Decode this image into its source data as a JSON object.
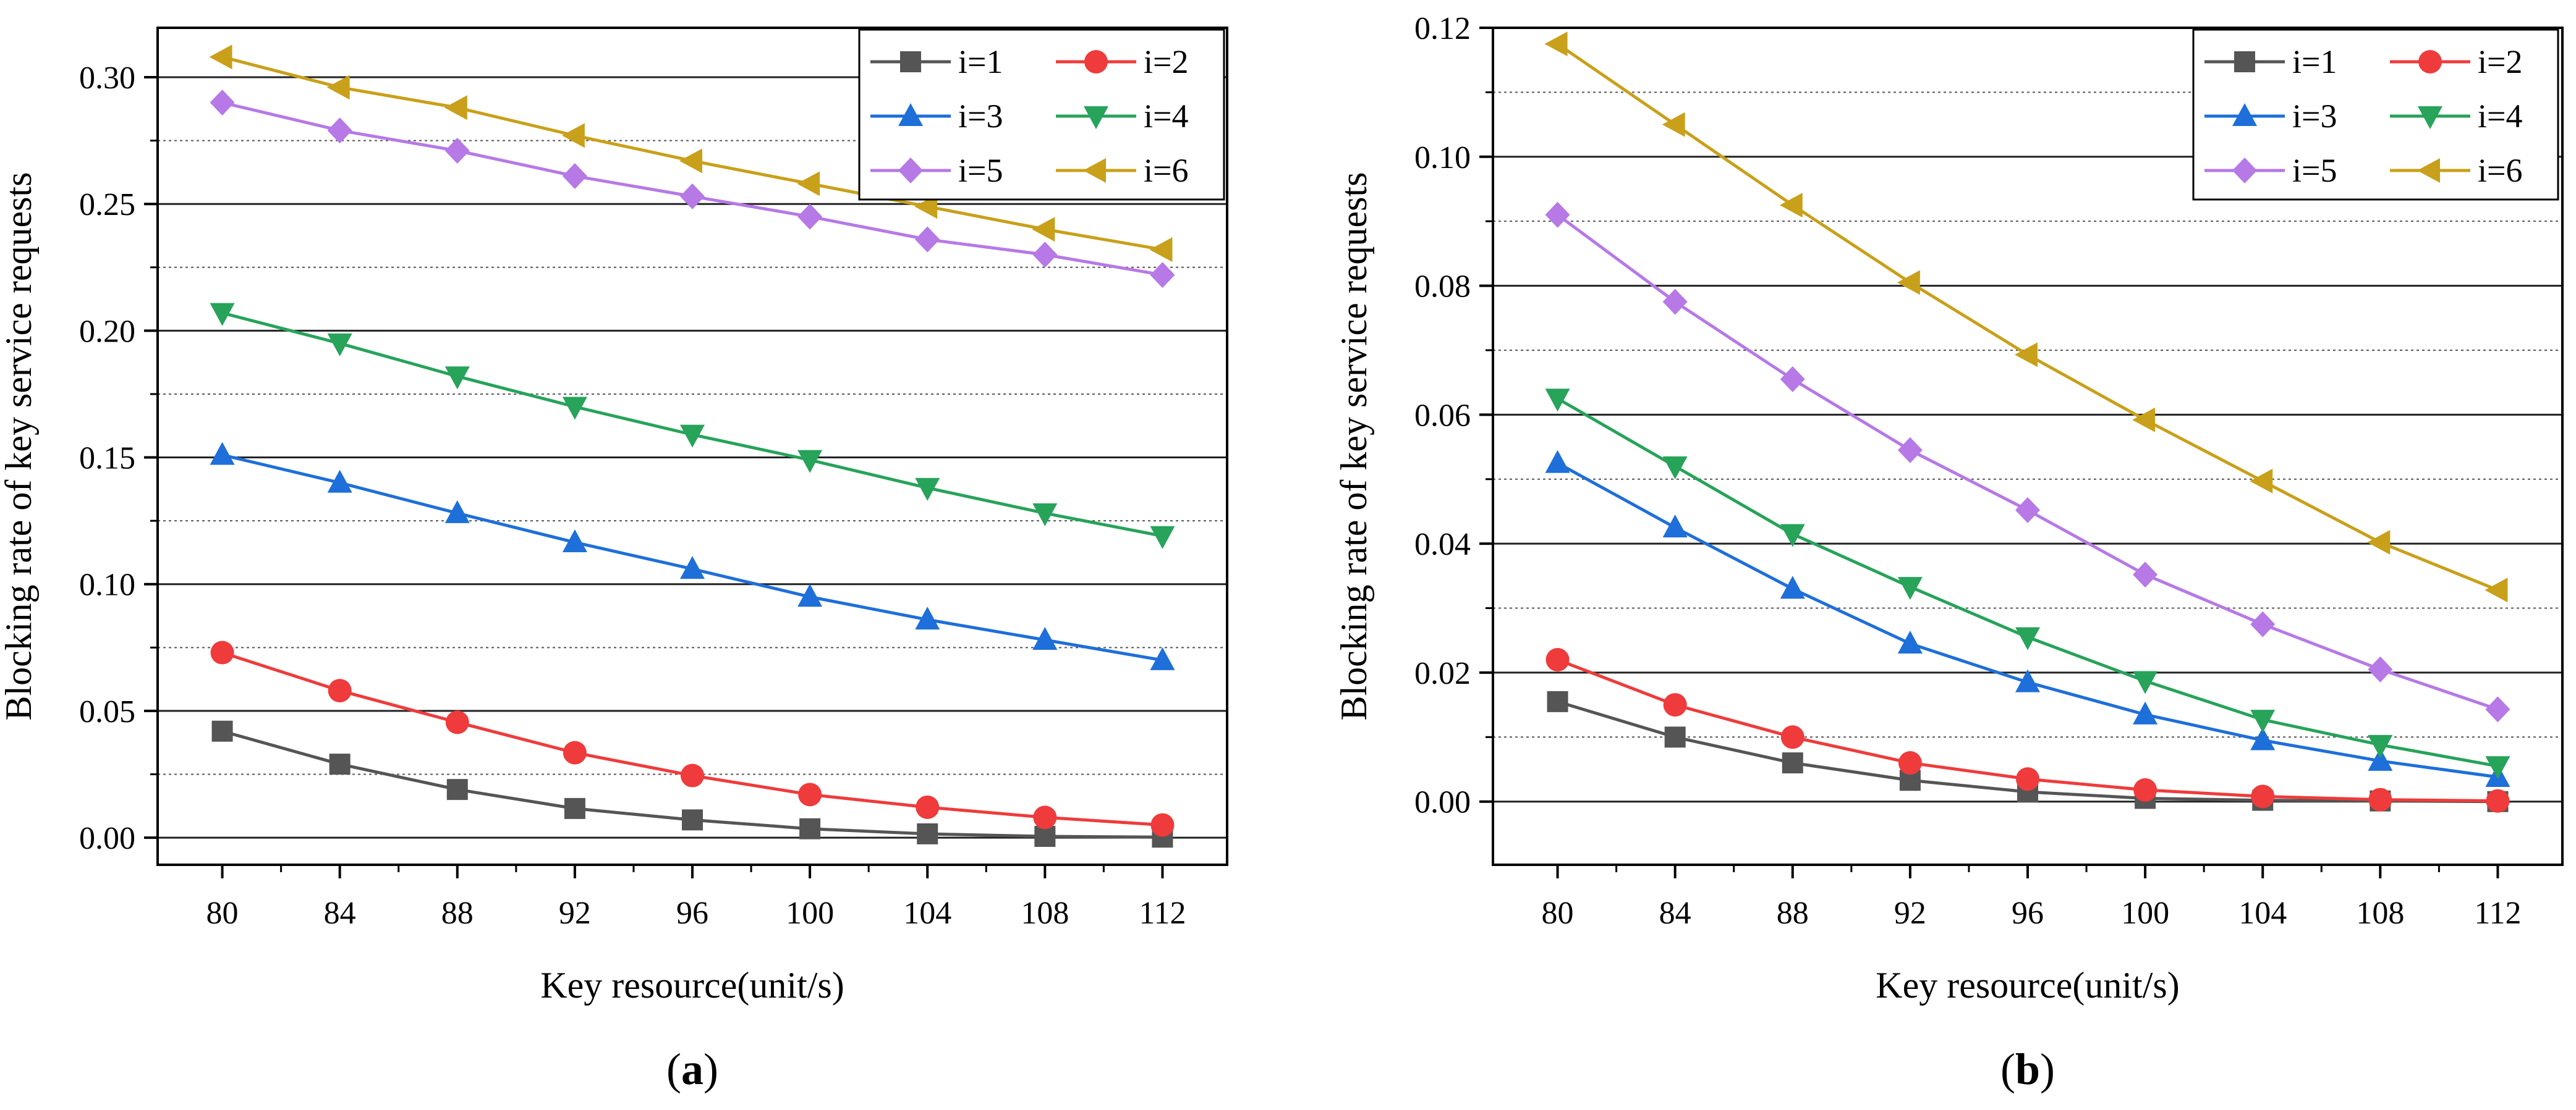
{
  "chart_data": [
    {
      "type": "line",
      "panel_label": "a",
      "xlabel": "Key resource(unit/s)",
      "ylabel": "Blocking rate of key service requests",
      "x": [
        80,
        84,
        88,
        92,
        96,
        100,
        104,
        108,
        112
      ],
      "x_ticks": [
        "80",
        "84",
        "88",
        "92",
        "96",
        "100",
        "104",
        "108",
        "112"
      ],
      "xlim": [
        77.8,
        114.2
      ],
      "ylim": [
        -0.0107,
        0.3195
      ],
      "y_ticks": [
        0.0,
        0.05,
        0.1,
        0.15,
        0.2,
        0.25,
        0.3
      ],
      "y_tick_labels": [
        "0.00",
        "0.05",
        "0.10",
        "0.15",
        "0.20",
        "0.25",
        "0.30"
      ],
      "grid_major": [
        0.0,
        0.05,
        0.1,
        0.15,
        0.2,
        0.25,
        0.3
      ],
      "grid_minor": [
        0.025,
        0.075,
        0.125,
        0.175,
        0.225,
        0.275
      ],
      "legend_position": "top-right",
      "series": [
        {
          "name": "i=1",
          "color": "#555555",
          "marker": "square",
          "values": [
            0.042,
            0.029,
            0.019,
            0.0115,
            0.007,
            0.0035,
            0.0015,
            0.0005,
            0.0002
          ]
        },
        {
          "name": "i=2",
          "color": "#ef3b3b",
          "marker": "circle",
          "values": [
            0.073,
            0.058,
            0.0455,
            0.0335,
            0.0245,
            0.017,
            0.012,
            0.008,
            0.005
          ]
        },
        {
          "name": "i=3",
          "color": "#1e6fd9",
          "marker": "triangle-up",
          "values": [
            0.151,
            0.14,
            0.128,
            0.1165,
            0.106,
            0.095,
            0.086,
            0.078,
            0.07
          ]
        },
        {
          "name": "i=4",
          "color": "#27a35a",
          "marker": "triangle-down",
          "values": [
            0.207,
            0.195,
            0.182,
            0.17,
            0.159,
            0.149,
            0.138,
            0.128,
            0.119
          ]
        },
        {
          "name": "i=5",
          "color": "#b679e6",
          "marker": "diamond",
          "values": [
            0.29,
            0.279,
            0.271,
            0.261,
            0.253,
            0.245,
            0.236,
            0.23,
            0.222
          ]
        },
        {
          "name": "i=6",
          "color": "#c9a01a",
          "marker": "triangle-left",
          "values": [
            0.308,
            0.296,
            0.288,
            0.277,
            0.267,
            0.258,
            0.249,
            0.24,
            0.232
          ]
        }
      ]
    },
    {
      "type": "line",
      "panel_label": "b",
      "xlabel": "Key resource(unit/s)",
      "ylabel": "Blocking rate of key service requests",
      "x": [
        80,
        84,
        88,
        92,
        96,
        100,
        104,
        108,
        112
      ],
      "x_ticks": [
        "80",
        "84",
        "88",
        "92",
        "96",
        "100",
        "104",
        "108",
        "112"
      ],
      "xlim": [
        77.8,
        114.2
      ],
      "ylim": [
        -0.0098,
        0.12
      ],
      "y_ticks": [
        0.0,
        0.02,
        0.04,
        0.06,
        0.08,
        0.1,
        0.12
      ],
      "y_tick_labels": [
        "0.00",
        "0.02",
        "0.04",
        "0.06",
        "0.08",
        "0.10",
        "0.12"
      ],
      "grid_major": [
        0.0,
        0.02,
        0.04,
        0.06,
        0.08,
        0.1
      ],
      "grid_minor": [
        0.01,
        0.03,
        0.05,
        0.07,
        0.09,
        0.11
      ],
      "legend_position": "top-right",
      "series": [
        {
          "name": "i=1",
          "color": "#555555",
          "marker": "square",
          "values": [
            0.0155,
            0.01,
            0.006,
            0.0033,
            0.0015,
            0.0005,
            0.0002,
            0.0001,
            0.0
          ]
        },
        {
          "name": "i=2",
          "color": "#ef3b3b",
          "marker": "circle",
          "values": [
            0.022,
            0.015,
            0.01,
            0.006,
            0.0035,
            0.0018,
            0.0008,
            0.0003,
            0.0001
          ]
        },
        {
          "name": "i=3",
          "color": "#1e6fd9",
          "marker": "triangle-up",
          "values": [
            0.0525,
            0.0425,
            0.033,
            0.0245,
            0.0185,
            0.0135,
            0.0095,
            0.0063,
            0.0038
          ]
        },
        {
          "name": "i=4",
          "color": "#27a35a",
          "marker": "triangle-down",
          "values": [
            0.0625,
            0.052,
            0.0415,
            0.0333,
            0.0255,
            0.0187,
            0.0127,
            0.0088,
            0.0055
          ]
        },
        {
          "name": "i=5",
          "color": "#b679e6",
          "marker": "diamond",
          "values": [
            0.091,
            0.0775,
            0.0655,
            0.0545,
            0.0452,
            0.0352,
            0.0275,
            0.0205,
            0.0143
          ]
        },
        {
          "name": "i=6",
          "color": "#c9a01a",
          "marker": "triangle-left",
          "values": [
            0.1175,
            0.105,
            0.0925,
            0.0805,
            0.0693,
            0.0592,
            0.0497,
            0.0402,
            0.0328
          ]
        }
      ]
    }
  ]
}
